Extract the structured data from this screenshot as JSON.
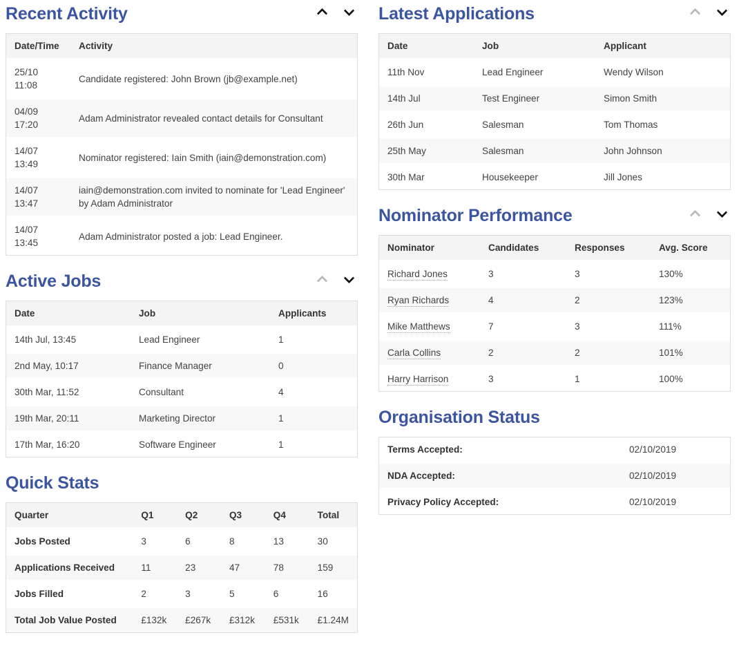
{
  "theme": {
    "accent": "#3b55a0",
    "chevron_active": "#151515",
    "chevron_muted": "#b9b9b9",
    "table_header_bg": "#f4f4f4",
    "stripe_bg": "#f8f8f8",
    "border": "#dddddd"
  },
  "panels": {
    "recent_activity": {
      "title": "Recent Activity",
      "up_active": true,
      "down_active": true,
      "columns": [
        "Date/Time",
        "Activity"
      ],
      "rows": [
        [
          "25/10 11:08",
          "Candidate registered: John Brown (jb@example.net)"
        ],
        [
          "04/09 17:20",
          "Adam Administrator revealed contact details for Consultant"
        ],
        [
          "14/07 13:49",
          "Nominator registered: Iain Smith (iain@demonstration.com)"
        ],
        [
          "14/07 13:47",
          "iain@demonstration.com invited to nominate for 'Lead Engineer' by Adam Administrator"
        ],
        [
          "14/07 13:45",
          "Adam Administrator posted a job: Lead Engineer."
        ]
      ]
    },
    "active_jobs": {
      "title": "Active Jobs",
      "up_active": false,
      "down_active": true,
      "columns": [
        "Date",
        "Job",
        "Applicants"
      ],
      "rows": [
        [
          "14th Jul, 13:45",
          "Lead Engineer",
          "1"
        ],
        [
          "2nd May, 10:17",
          "Finance Manager",
          "0"
        ],
        [
          "30th Mar, 11:52",
          "Consultant",
          "4"
        ],
        [
          "19th Mar, 20:11",
          "Marketing Director",
          "1"
        ],
        [
          "17th Mar, 16:20",
          "Software Engineer",
          "1"
        ]
      ]
    },
    "quick_stats": {
      "title": "Quick Stats",
      "columns": [
        "Quarter",
        "Q1",
        "Q2",
        "Q3",
        "Q4",
        "Total"
      ],
      "rows": [
        [
          "Jobs Posted",
          "3",
          "6",
          "8",
          "13",
          "30"
        ],
        [
          "Applications Received",
          "11",
          "23",
          "47",
          "78",
          "159"
        ],
        [
          "Jobs Filled",
          "2",
          "3",
          "5",
          "6",
          "16"
        ],
        [
          "Total Job Value Posted",
          "£132k",
          "£267k",
          "£312k",
          "£531k",
          "£1.24M"
        ]
      ]
    },
    "latest_applications": {
      "title": "Latest Applications",
      "up_active": false,
      "down_active": true,
      "columns": [
        "Date",
        "Job",
        "Applicant"
      ],
      "rows": [
        [
          "11th Nov",
          "Lead Engineer",
          "Wendy Wilson"
        ],
        [
          "14th Jul",
          "Test Engineer",
          "Simon Smith"
        ],
        [
          "26th Jun",
          "Salesman",
          "Tom Thomas"
        ],
        [
          "25th May",
          "Salesman",
          "John Johnson"
        ],
        [
          "30th Mar",
          "Housekeeper",
          "Jill Jones"
        ]
      ]
    },
    "nominator_performance": {
      "title": "Nominator Performance",
      "up_active": false,
      "down_active": true,
      "columns": [
        "Nominator",
        "Candidates",
        "Responses",
        "Avg. Score"
      ],
      "link_first_col": true,
      "rows": [
        [
          "Richard Jones",
          "3",
          "3",
          "130%"
        ],
        [
          "Ryan Richards",
          "4",
          "2",
          "123%"
        ],
        [
          "Mike Matthews",
          "7",
          "3",
          "111%"
        ],
        [
          "Carla Collins",
          "2",
          "2",
          "101%"
        ],
        [
          "Harry Harrison",
          "3",
          "1",
          "100%"
        ]
      ]
    },
    "organisation_status": {
      "title": "Organisation Status",
      "columns": [],
      "rows": [
        [
          "Terms Accepted:",
          "02/10/2019"
        ],
        [
          "NDA Accepted:",
          "02/10/2019"
        ],
        [
          "Privacy Policy Accepted:",
          "02/10/2019"
        ]
      ]
    }
  }
}
